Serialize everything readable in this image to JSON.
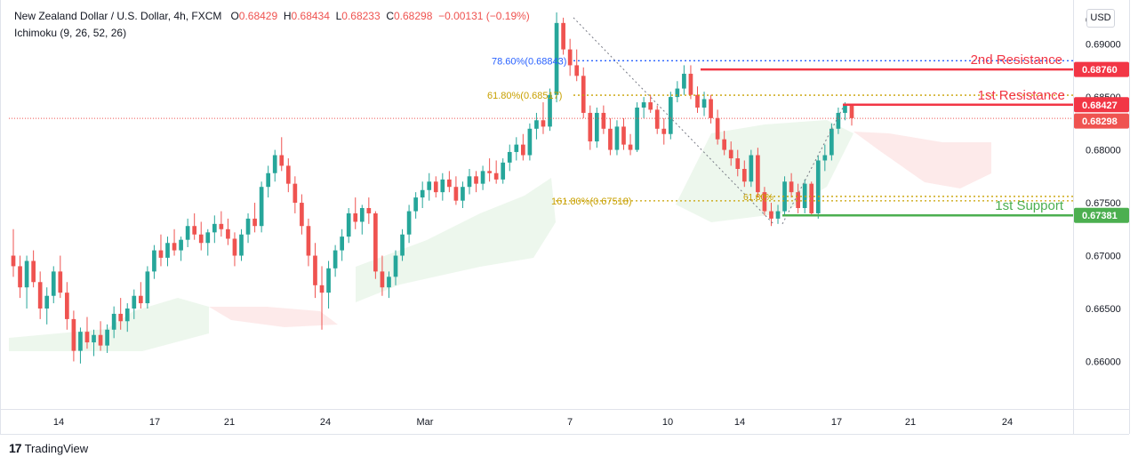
{
  "header": {
    "symbol": "New Zealand Dollar / U.S. Dollar, 4h, FXCM",
    "open_label": "O",
    "open": "0.68429",
    "high_label": "H",
    "high": "0.68434",
    "low_label": "L",
    "low": "0.68233",
    "close_label": "C",
    "close": "0.68298",
    "change": "−0.00131 (−0.19%)",
    "indicator": "Ichimoku (9, 26, 52, 26)"
  },
  "currency_button": "USD",
  "brand": "TradingView",
  "colors": {
    "up": "#26a69a",
    "down": "#ef5350",
    "resistance": "#f23645",
    "support": "#4caf50",
    "fib_blue": "#2962ff",
    "fib_gold": "#c8a000",
    "cloud_bull": "#e8f5e9",
    "cloud_bear": "#fde8e8"
  },
  "chart_data": {
    "type": "candlestick",
    "ylim": [
      0.6555,
      0.6935
    ],
    "y_ticks": [
      "0.66000",
      "0.66500",
      "0.67000",
      "0.67500",
      "0.68000",
      "0.68500",
      "0.69000"
    ],
    "y_top_partial": "0",
    "x_ticks": [
      "14",
      "17",
      "21",
      "24",
      "Mar",
      "7",
      "10",
      "14",
      "17",
      "21",
      "24"
    ],
    "levels": [
      {
        "name": "2nd Resistance",
        "value": 0.6876,
        "label": "0.68760",
        "color": "#f23645"
      },
      {
        "name": "1st Resistance",
        "value": 0.68427,
        "label": "0.68427",
        "color": "#f23645"
      },
      {
        "name": "1st Support",
        "value": 0.67381,
        "label": "0.67381",
        "color": "#4caf50"
      }
    ],
    "current_price": {
      "value": 0.68298,
      "label": "0.68298"
    },
    "fib_levels": [
      {
        "label": "78.60%(0.68843)",
        "value": 0.68843,
        "color": "#2962ff"
      },
      {
        "label": "61.80%(0.68517)",
        "value": 0.68517,
        "color": "#c8a000"
      },
      {
        "label": "161.80%(0.67518)",
        "value": 0.67518,
        "color": "#c8a000"
      },
      {
        "label": "61.80%",
        "value": 0.6756,
        "color": "#c8a000"
      }
    ],
    "candles_ohlc": [
      [
        0.67,
        0.6725,
        0.668,
        0.669
      ],
      [
        0.669,
        0.67,
        0.666,
        0.667
      ],
      [
        0.667,
        0.67,
        0.665,
        0.6695
      ],
      [
        0.6695,
        0.6705,
        0.667,
        0.6675
      ],
      [
        0.6675,
        0.6685,
        0.664,
        0.665
      ],
      [
        0.665,
        0.667,
        0.6635,
        0.6662
      ],
      [
        0.6662,
        0.669,
        0.6655,
        0.6685
      ],
      [
        0.6685,
        0.67,
        0.666,
        0.6665
      ],
      [
        0.6665,
        0.6675,
        0.663,
        0.664
      ],
      [
        0.664,
        0.6648,
        0.66,
        0.661
      ],
      [
        0.661,
        0.6632,
        0.6598,
        0.6628
      ],
      [
        0.6628,
        0.6642,
        0.6612,
        0.6618
      ],
      [
        0.6618,
        0.663,
        0.6605,
        0.6625
      ],
      [
        0.6625,
        0.6638,
        0.661,
        0.6615
      ],
      [
        0.6615,
        0.6635,
        0.6608,
        0.663
      ],
      [
        0.663,
        0.6652,
        0.6622,
        0.6645
      ],
      [
        0.6645,
        0.666,
        0.663,
        0.6638
      ],
      [
        0.6638,
        0.6655,
        0.6628,
        0.665
      ],
      [
        0.665,
        0.6668,
        0.664,
        0.6662
      ],
      [
        0.6662,
        0.6675,
        0.665,
        0.6655
      ],
      [
        0.6655,
        0.669,
        0.665,
        0.6685
      ],
      [
        0.6685,
        0.671,
        0.6678,
        0.6705
      ],
      [
        0.6705,
        0.672,
        0.669,
        0.6698
      ],
      [
        0.6698,
        0.6718,
        0.669,
        0.6712
      ],
      [
        0.6712,
        0.6725,
        0.67,
        0.6705
      ],
      [
        0.6705,
        0.6718,
        0.6695,
        0.6715
      ],
      [
        0.6715,
        0.6735,
        0.6708,
        0.6728
      ],
      [
        0.6728,
        0.674,
        0.6715,
        0.672
      ],
      [
        0.672,
        0.6732,
        0.6705,
        0.6712
      ],
      [
        0.6712,
        0.6725,
        0.67,
        0.6722
      ],
      [
        0.6722,
        0.6738,
        0.6712,
        0.673
      ],
      [
        0.673,
        0.6742,
        0.6718,
        0.6725
      ],
      [
        0.6725,
        0.6735,
        0.671,
        0.6716
      ],
      [
        0.6716,
        0.6722,
        0.669,
        0.67
      ],
      [
        0.67,
        0.6725,
        0.6695,
        0.672
      ],
      [
        0.672,
        0.674,
        0.6712,
        0.6735
      ],
      [
        0.6735,
        0.675,
        0.6722,
        0.6728
      ],
      [
        0.6728,
        0.677,
        0.6722,
        0.6765
      ],
      [
        0.6765,
        0.6785,
        0.6755,
        0.6778
      ],
      [
        0.6778,
        0.68,
        0.677,
        0.6795
      ],
      [
        0.6795,
        0.6812,
        0.678,
        0.6785
      ],
      [
        0.6785,
        0.6792,
        0.676,
        0.6768
      ],
      [
        0.6768,
        0.6775,
        0.674,
        0.675
      ],
      [
        0.675,
        0.6758,
        0.672,
        0.6728
      ],
      [
        0.6728,
        0.6735,
        0.669,
        0.67
      ],
      [
        0.67,
        0.6712,
        0.666,
        0.6672
      ],
      [
        0.6672,
        0.669,
        0.663,
        0.6665
      ],
      [
        0.6665,
        0.6695,
        0.665,
        0.6688
      ],
      [
        0.6688,
        0.671,
        0.668,
        0.6705
      ],
      [
        0.6705,
        0.6725,
        0.6695,
        0.6718
      ],
      [
        0.6718,
        0.6745,
        0.6712,
        0.674
      ],
      [
        0.674,
        0.6755,
        0.6725,
        0.6732
      ],
      [
        0.6732,
        0.6748,
        0.672,
        0.6745
      ],
      [
        0.6745,
        0.6755,
        0.673,
        0.674
      ],
      [
        0.674,
        0.6742,
        0.6678,
        0.6685
      ],
      [
        0.6685,
        0.67,
        0.6662,
        0.667
      ],
      [
        0.667,
        0.6685,
        0.666,
        0.668
      ],
      [
        0.668,
        0.6705,
        0.6672,
        0.67
      ],
      [
        0.67,
        0.6725,
        0.6695,
        0.672
      ],
      [
        0.672,
        0.6748,
        0.6712,
        0.6742
      ],
      [
        0.6742,
        0.676,
        0.6735,
        0.6755
      ],
      [
        0.6755,
        0.677,
        0.6745,
        0.6762
      ],
      [
        0.6762,
        0.6778,
        0.6752,
        0.677
      ],
      [
        0.677,
        0.6775,
        0.6755,
        0.676
      ],
      [
        0.676,
        0.6778,
        0.6752,
        0.6772
      ],
      [
        0.6772,
        0.678,
        0.676,
        0.6765
      ],
      [
        0.6765,
        0.6775,
        0.6748,
        0.6752
      ],
      [
        0.6752,
        0.677,
        0.6745,
        0.6765
      ],
      [
        0.6765,
        0.6782,
        0.6758,
        0.6775
      ],
      [
        0.6775,
        0.678,
        0.676,
        0.6768
      ],
      [
        0.6768,
        0.6785,
        0.6762,
        0.678
      ],
      [
        0.678,
        0.6792,
        0.677,
        0.6778
      ],
      [
        0.6778,
        0.679,
        0.6768,
        0.6772
      ],
      [
        0.6772,
        0.6792,
        0.6768,
        0.6788
      ],
      [
        0.6788,
        0.6805,
        0.678,
        0.6798
      ],
      [
        0.6798,
        0.6812,
        0.679,
        0.6805
      ],
      [
        0.6805,
        0.6815,
        0.679,
        0.6795
      ],
      [
        0.6795,
        0.6825,
        0.679,
        0.682
      ],
      [
        0.682,
        0.6835,
        0.681,
        0.6828
      ],
      [
        0.6828,
        0.6845,
        0.6815,
        0.6822
      ],
      [
        0.6822,
        0.6858,
        0.6818,
        0.6852
      ],
      [
        0.6852,
        0.693,
        0.6845,
        0.692
      ],
      [
        0.692,
        0.6925,
        0.689,
        0.6895
      ],
      [
        0.6895,
        0.6905,
        0.687,
        0.688
      ],
      [
        0.688,
        0.6895,
        0.6865,
        0.687
      ],
      [
        0.687,
        0.6878,
        0.683,
        0.6835
      ],
      [
        0.6835,
        0.6842,
        0.68,
        0.6808
      ],
      [
        0.6808,
        0.684,
        0.6802,
        0.6835
      ],
      [
        0.6835,
        0.6842,
        0.6815,
        0.682
      ],
      [
        0.682,
        0.683,
        0.6795,
        0.68
      ],
      [
        0.68,
        0.6828,
        0.6795,
        0.6822
      ],
      [
        0.6822,
        0.683,
        0.68,
        0.6805
      ],
      [
        0.6805,
        0.6815,
        0.6795,
        0.68
      ],
      [
        0.68,
        0.6845,
        0.6798,
        0.684
      ],
      [
        0.684,
        0.685,
        0.683,
        0.6845
      ],
      [
        0.6845,
        0.6852,
        0.6835,
        0.6838
      ],
      [
        0.6838,
        0.6842,
        0.6815,
        0.682
      ],
      [
        0.682,
        0.683,
        0.6805,
        0.6815
      ],
      [
        0.6815,
        0.6855,
        0.681,
        0.685
      ],
      [
        0.685,
        0.6865,
        0.6845,
        0.6858
      ],
      [
        0.6858,
        0.688,
        0.6852,
        0.6872
      ],
      [
        0.6872,
        0.688,
        0.6848,
        0.6852
      ],
      [
        0.6852,
        0.686,
        0.6835,
        0.684
      ],
      [
        0.684,
        0.6855,
        0.6832,
        0.6848
      ],
      [
        0.6848,
        0.6852,
        0.6825,
        0.683
      ],
      [
        0.683,
        0.6838,
        0.6805,
        0.681
      ],
      [
        0.681,
        0.6818,
        0.6795,
        0.68
      ],
      [
        0.68,
        0.6808,
        0.6785,
        0.6792
      ],
      [
        0.6792,
        0.68,
        0.6775,
        0.6782
      ],
      [
        0.6782,
        0.679,
        0.6765,
        0.677
      ],
      [
        0.677,
        0.68,
        0.6765,
        0.6795
      ],
      [
        0.6795,
        0.6802,
        0.6755,
        0.676
      ],
      [
        0.676,
        0.6765,
        0.6738,
        0.6742
      ],
      [
        0.6742,
        0.675,
        0.6728,
        0.6735
      ],
      [
        0.6735,
        0.6748,
        0.673,
        0.6742
      ],
      [
        0.6742,
        0.6775,
        0.6738,
        0.677
      ],
      [
        0.677,
        0.6778,
        0.6755,
        0.676
      ],
      [
        0.676,
        0.6768,
        0.674,
        0.6745
      ],
      [
        0.6745,
        0.6772,
        0.674,
        0.6768
      ],
      [
        0.6768,
        0.677,
        0.6738,
        0.674
      ],
      [
        0.674,
        0.6795,
        0.6735,
        0.679
      ],
      [
        0.679,
        0.6805,
        0.678,
        0.6795
      ],
      [
        0.6795,
        0.6825,
        0.679,
        0.682
      ],
      [
        0.682,
        0.684,
        0.6815,
        0.6835
      ],
      [
        0.6835,
        0.6845,
        0.6828,
        0.6843
      ],
      [
        0.6843,
        0.6843,
        0.6823,
        0.683
      ]
    ]
  }
}
